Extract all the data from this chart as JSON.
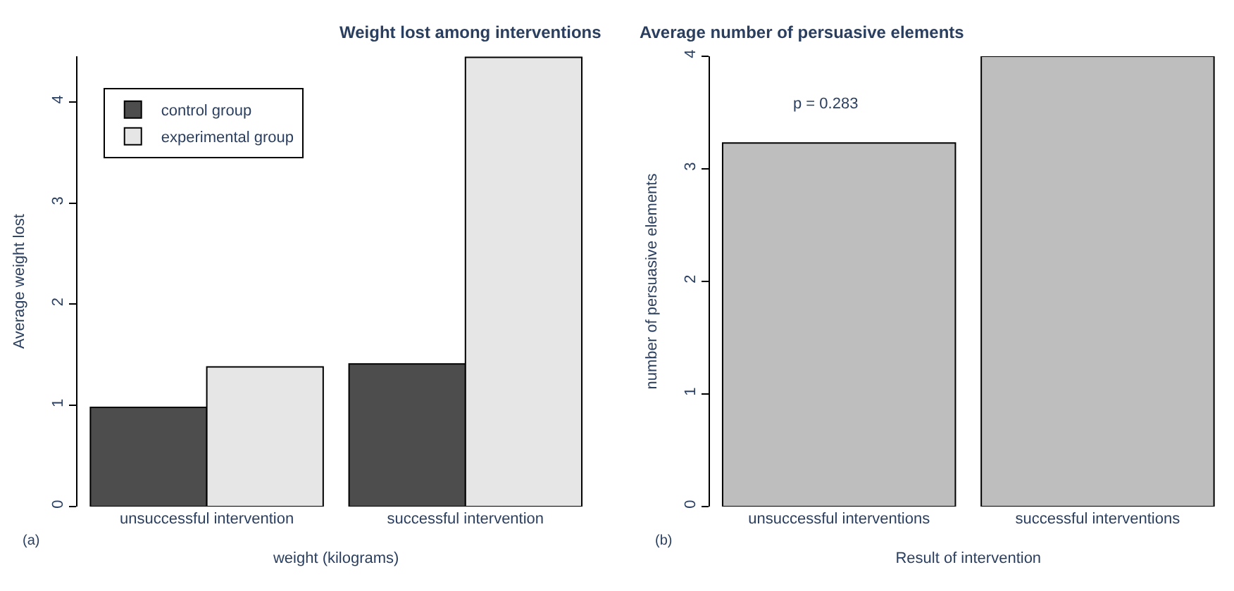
{
  "chart_data": [
    {
      "type": "bar",
      "title": "Weight lost among interventions",
      "xlabel": "weight (kilograms)",
      "ylabel": "Average weight lost",
      "categories": [
        "unsuccessful intervention",
        "successful intervention"
      ],
      "series": [
        {
          "name": "control group",
          "color": "#4d4d4d",
          "values": [
            0.98,
            1.41
          ]
        },
        {
          "name": "experimental group",
          "color": "#e6e6e6",
          "values": [
            1.38,
            4.44
          ]
        }
      ],
      "ylim": [
        0,
        4.45
      ],
      "yticks": [
        0,
        1,
        2,
        3,
        4
      ],
      "legend": "top left",
      "annotations": [
        "(a)"
      ]
    },
    {
      "type": "bar",
      "title": "Average number of persuasive elements",
      "xlabel": "Result of intervention",
      "ylabel": "number of persuasive elements",
      "categories": [
        "unsuccessful interventions",
        "successful interventions"
      ],
      "values": [
        3.23,
        4.0
      ],
      "color": "#bebebe",
      "ylim": [
        0,
        4
      ],
      "yticks": [
        0,
        1,
        2,
        3,
        4
      ],
      "annotations": [
        "(b)",
        "p = 0.283"
      ]
    }
  ]
}
